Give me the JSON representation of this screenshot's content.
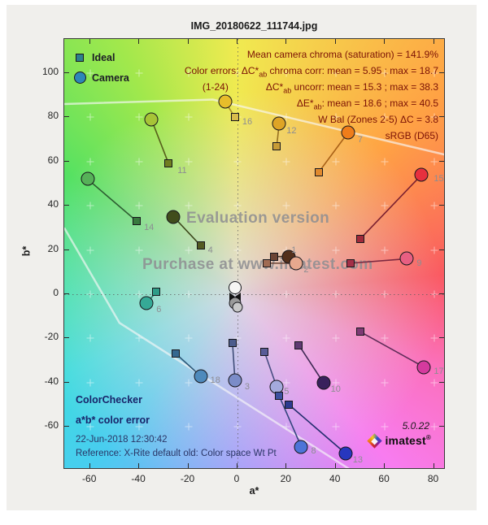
{
  "window": {
    "title": "IMG_20180622_111744.jpg"
  },
  "legend": {
    "ideal_label": "Ideal",
    "camera_label": "Camera",
    "ideal_swatch_color": "#2d7f8e",
    "camera_swatch_color": "#2d86b8"
  },
  "stats": {
    "text_color": "#7c1205",
    "line1": "Mean camera chroma (saturation) = 141.9%",
    "line2_pre": "Color errors: ΔC*",
    "line2_sub": "ab",
    "line2_post": " chroma corr:  mean = 5.95 ;  max = 18.7",
    "line3_pre": "(1-24)",
    "line3_a": "ΔC*",
    "line3_sub": "ab",
    "line3_post": " uncorr:  mean = 15.3 ;  max = 38.3",
    "line4_a": "ΔE*",
    "line4_sub": "ab",
    "line4_post": ":  mean = 18.6 ;  max = 40.5",
    "line5": "W Bal (Zones 2-5) ΔC = 3.8",
    "line6": "sRGB (D65)"
  },
  "watermark": {
    "line1": "Evaluation version",
    "line2": "Purchase at www.imatest.com"
  },
  "info": {
    "title1": "ColorChecker",
    "title2": "a*b* color error",
    "timestamp": "22-Jun-2018 12:30:42",
    "reference": "Reference: X-Rite default old: Color space Wt Pt"
  },
  "branding": {
    "version": "5.0.22",
    "logo_text": "imatest",
    "registered": "®",
    "logo_icon": "imatest-diamond-logo"
  },
  "chart_data": {
    "type": "scatter",
    "title": "IMG_20180622_111744.jpg",
    "xlabel": "a*",
    "ylabel": "b*",
    "xlim": [
      -70.5,
      84.8
    ],
    "ylim": [
      -79.4,
      115.4
    ],
    "x_ticks": [
      -60,
      -40,
      -20,
      0,
      20,
      40,
      60,
      80
    ],
    "y_ticks": [
      -60,
      -40,
      -20,
      0,
      20,
      40,
      60,
      80,
      100
    ],
    "grid": "faint white plus marks at 20-unit intersections, dotted zero lines",
    "legend_position": "top-left",
    "series_note": "squares = ideal patch a*b*, circles = camera a*b*, joined by line",
    "patches": [
      {
        "id": "1",
        "ideal": [
          15,
          17
        ],
        "camera": [
          21,
          17
        ],
        "label_at": [
          23,
          20
        ],
        "ideal_color": "#6b4434",
        "camera_color": "#53301c",
        "line_color": "#4a3322"
      },
      {
        "id": "2",
        "ideal": [
          12,
          14
        ],
        "camera": [
          24,
          14
        ],
        "label_at": [
          28,
          11
        ],
        "ideal_color": "#a06b52",
        "camera_color": "#e6a88e",
        "line_color": "#6d4636"
      },
      {
        "id": "3",
        "ideal": [
          -2,
          -22
        ],
        "camera": [
          -1,
          -39
        ],
        "label_at": [
          4,
          -42
        ],
        "ideal_color": "#4c5c8c",
        "camera_color": "#7b8cc8",
        "line_color": "#3f4d78"
      },
      {
        "id": "4",
        "ideal": [
          -15,
          22
        ],
        "camera": [
          -26,
          35
        ],
        "label_at": [
          -11,
          20
        ],
        "ideal_color": "#545a22",
        "camera_color": "#414d1c",
        "line_color": "#3a4418"
      },
      {
        "id": "5",
        "ideal": [
          11,
          -26
        ],
        "camera": [
          16,
          -42
        ],
        "label_at": [
          20,
          -44
        ],
        "ideal_color": "#585c96",
        "camera_color": "#a4aadc",
        "line_color": "#494e82"
      },
      {
        "id": "6",
        "ideal": [
          -33,
          1
        ],
        "camera": [
          -37,
          -4
        ],
        "label_at": [
          -32,
          -7
        ],
        "ideal_color": "#2f9c88",
        "camera_color": "#36a996",
        "line_color": "#277a69"
      },
      {
        "id": "7",
        "ideal": [
          33,
          55
        ],
        "camera": [
          45,
          73
        ],
        "label_at": [
          50,
          70
        ],
        "ideal_color": "#e08a2e",
        "camera_color": "#ef7d1a",
        "line_color": "#a86016"
      },
      {
        "id": "8",
        "ideal": [
          17,
          -46
        ],
        "camera": [
          26,
          -69
        ],
        "label_at": [
          31,
          -71
        ],
        "ideal_color": "#3c50a0",
        "camera_color": "#4e74d8",
        "line_color": "#34457e"
      },
      {
        "id": "9",
        "ideal": [
          46,
          14
        ],
        "camera": [
          69,
          16
        ],
        "label_at": [
          74,
          14
        ],
        "ideal_color": "#a43048",
        "camera_color": "#e85f82",
        "line_color": "#7c2840"
      },
      {
        "id": "10",
        "ideal": [
          25,
          -23
        ],
        "camera": [
          35,
          -40
        ],
        "label_at": [
          40,
          -43
        ],
        "ideal_color": "#5e3a72",
        "camera_color": "#39215c",
        "line_color": "#402a54"
      },
      {
        "id": "11",
        "ideal": [
          -28,
          59
        ],
        "camera": [
          -35,
          79
        ],
        "label_at": [
          -22.5,
          56
        ],
        "ideal_color": "#707e20",
        "camera_color": "#a7c437",
        "line_color": "#565f1a"
      },
      {
        "id": "12",
        "ideal": [
          16,
          67
        ],
        "camera": [
          17,
          77
        ],
        "label_at": [
          22,
          74
        ],
        "ideal_color": "#c89c36",
        "camera_color": "#dea426",
        "line_color": "#977020"
      },
      {
        "id": "13",
        "ideal": [
          21,
          -50
        ],
        "camera": [
          44,
          -72
        ],
        "label_at": [
          49,
          -75
        ],
        "ideal_color": "#2c3a90",
        "camera_color": "#2737be",
        "line_color": "#232e6e"
      },
      {
        "id": "14",
        "ideal": [
          -41,
          33
        ],
        "camera": [
          -61,
          52
        ],
        "label_at": [
          -36,
          30
        ],
        "ideal_color": "#387a3e",
        "camera_color": "#56b158",
        "line_color": "#2c5c30"
      },
      {
        "id": "15",
        "ideal": [
          50,
          25
        ],
        "camera": [
          75,
          54
        ],
        "label_at": [
          82,
          52
        ],
        "ideal_color": "#a02a3a",
        "camera_color": "#e7303e",
        "line_color": "#7a2030"
      },
      {
        "id": "16",
        "ideal": [
          -1,
          80
        ],
        "camera": [
          -5,
          87
        ],
        "label_at": [
          4,
          78
        ],
        "ideal_color": "#d8bc4c",
        "camera_color": "#e7bd2b",
        "line_color": "#a68c2a"
      },
      {
        "id": "17",
        "ideal": [
          50,
          -17
        ],
        "camera": [
          76,
          -33
        ],
        "label_at": [
          82,
          -35
        ],
        "ideal_color": "#7e3a74",
        "camera_color": "#d53a9e",
        "line_color": "#5e2c58"
      },
      {
        "id": "18",
        "ideal": [
          -25,
          -27
        ],
        "camera": [
          -15,
          -37
        ],
        "label_at": [
          -9,
          -39
        ],
        "ideal_color": "#356890",
        "camera_color": "#4e8abc",
        "line_color": "#2c5676"
      }
    ],
    "neutral_cluster": [
      {
        "shape": "circle",
        "at": [
          -1,
          3
        ],
        "color": "#f6f6f4",
        "size": 16
      },
      {
        "shape": "circle",
        "at": [
          -1,
          -4
        ],
        "color": "#9a9a9a",
        "size": 15
      },
      {
        "shape": "circle",
        "at": [
          0,
          -6
        ],
        "color": "#c8c8c8",
        "size": 13
      },
      {
        "shape": "bowtie",
        "at": [
          -1,
          -1
        ],
        "color": "#141414"
      }
    ],
    "gamut_boundary": [
      [
        [
          -70.5,
          86
        ],
        [
          -10,
          88
        ],
        [
          84.8,
          63
        ]
      ],
      [
        [
          -70.5,
          30
        ],
        [
          -48,
          -13
        ],
        [
          46,
          -79.4
        ]
      ]
    ],
    "gamut_line_color": "rgba(248,248,248,0.65)"
  }
}
